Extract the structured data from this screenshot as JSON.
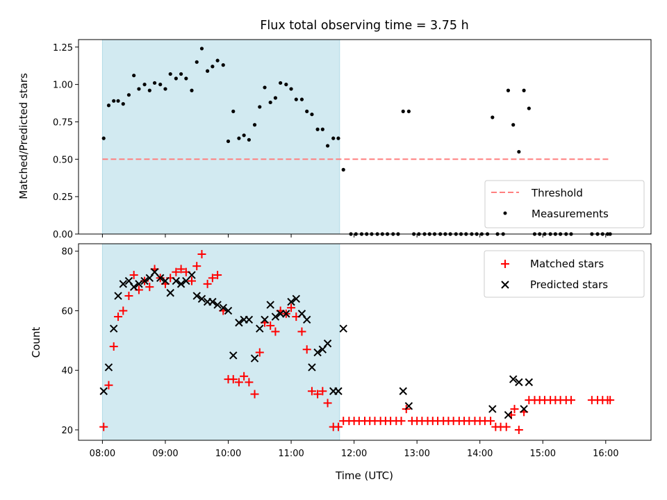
{
  "chart_data": {
    "title": "Flux total observing time = 3.75 h",
    "xlabel": "Time (UTC)",
    "x_ticks": [
      "08:00",
      "09:00",
      "10:00",
      "11:00",
      "12:00",
      "13:00",
      "14:00",
      "15:00",
      "16:00"
    ],
    "x_range_hours": [
      7.62,
      16.72
    ],
    "shaded_window_hours": [
      8.0,
      11.77
    ],
    "colors": {
      "shade": "#add8e6",
      "threshold": "#ff7f7f",
      "measurements": "#000000",
      "matched": "#ff0000",
      "predicted": "#000000"
    },
    "top": {
      "type": "scatter",
      "ylabel": "Matched/Predicted stars",
      "ylim": [
        0,
        1.3
      ],
      "y_ticks": [
        "0.00",
        "0.25",
        "0.50",
        "0.75",
        "1.00",
        "1.25"
      ],
      "threshold": {
        "name": "Threshold",
        "value": 0.5,
        "x_range": [
          8.0,
          16.07
        ]
      },
      "measurements_name": "Measurements",
      "measurements": [
        [
          8.02,
          0.64
        ],
        [
          8.1,
          0.86
        ],
        [
          8.18,
          0.89
        ],
        [
          8.25,
          0.89
        ],
        [
          8.33,
          0.87
        ],
        [
          8.42,
          0.93
        ],
        [
          8.5,
          1.06
        ],
        [
          8.58,
          0.97
        ],
        [
          8.67,
          1.0
        ],
        [
          8.75,
          0.96
        ],
        [
          8.83,
          1.01
        ],
        [
          8.92,
          1.0
        ],
        [
          9.0,
          0.97
        ],
        [
          9.08,
          1.07
        ],
        [
          9.17,
          1.04
        ],
        [
          9.25,
          1.07
        ],
        [
          9.33,
          1.04
        ],
        [
          9.42,
          0.96
        ],
        [
          9.5,
          1.15
        ],
        [
          9.58,
          1.24
        ],
        [
          9.67,
          1.09
        ],
        [
          9.75,
          1.12
        ],
        [
          9.83,
          1.16
        ],
        [
          9.92,
          1.13
        ],
        [
          10.0,
          0.62
        ],
        [
          10.08,
          0.82
        ],
        [
          10.17,
          0.64
        ],
        [
          10.25,
          0.66
        ],
        [
          10.33,
          0.63
        ],
        [
          10.42,
          0.73
        ],
        [
          10.5,
          0.85
        ],
        [
          10.58,
          0.98
        ],
        [
          10.67,
          0.88
        ],
        [
          10.75,
          0.91
        ],
        [
          10.83,
          1.01
        ],
        [
          10.92,
          1.0
        ],
        [
          11.0,
          0.97
        ],
        [
          11.08,
          0.9
        ],
        [
          11.17,
          0.9
        ],
        [
          11.25,
          0.82
        ],
        [
          11.33,
          0.8
        ],
        [
          11.42,
          0.7
        ],
        [
          11.5,
          0.7
        ],
        [
          11.58,
          0.59
        ],
        [
          11.67,
          0.64
        ],
        [
          11.75,
          0.64
        ],
        [
          11.83,
          0.43
        ],
        [
          11.95,
          0
        ],
        [
          12.03,
          0
        ],
        [
          12.12,
          0
        ],
        [
          12.2,
          0
        ],
        [
          12.28,
          0
        ],
        [
          12.37,
          0
        ],
        [
          12.45,
          0
        ],
        [
          12.53,
          0
        ],
        [
          12.62,
          0
        ],
        [
          12.7,
          0
        ],
        [
          12.78,
          0.82
        ],
        [
          12.87,
          0.82
        ],
        [
          12.95,
          0
        ],
        [
          13.03,
          0
        ],
        [
          13.12,
          0
        ],
        [
          13.2,
          0
        ],
        [
          13.28,
          0
        ],
        [
          13.37,
          0
        ],
        [
          13.45,
          0
        ],
        [
          13.53,
          0
        ],
        [
          13.62,
          0
        ],
        [
          13.7,
          0
        ],
        [
          13.78,
          0
        ],
        [
          13.87,
          0
        ],
        [
          13.95,
          0
        ],
        [
          14.03,
          0
        ],
        [
          14.12,
          0
        ],
        [
          14.2,
          0.78
        ],
        [
          14.28,
          0
        ],
        [
          14.37,
          0
        ],
        [
          14.45,
          0.96
        ],
        [
          14.53,
          0.73
        ],
        [
          14.62,
          0.55
        ],
        [
          14.7,
          0.96
        ],
        [
          14.78,
          0.84
        ],
        [
          14.87,
          0
        ],
        [
          14.95,
          0
        ],
        [
          15.03,
          0
        ],
        [
          15.12,
          0
        ],
        [
          15.2,
          0
        ],
        [
          15.28,
          0
        ],
        [
          15.37,
          0
        ],
        [
          15.45,
          0
        ],
        [
          15.78,
          0
        ],
        [
          15.87,
          0
        ],
        [
          15.95,
          0
        ],
        [
          16.03,
          0
        ],
        [
          16.07,
          0
        ]
      ]
    },
    "bottom": {
      "type": "scatter",
      "ylabel": "Count",
      "ylim": [
        16.5,
        82.5
      ],
      "y_ticks": [
        "20",
        "40",
        "60",
        "80"
      ],
      "matched_name": "Matched stars",
      "predicted_name": "Predicted stars",
      "matched": [
        [
          8.02,
          21
        ],
        [
          8.1,
          35
        ],
        [
          8.18,
          48
        ],
        [
          8.25,
          58
        ],
        [
          8.33,
          60
        ],
        [
          8.42,
          65
        ],
        [
          8.5,
          72
        ],
        [
          8.58,
          67
        ],
        [
          8.67,
          70
        ],
        [
          8.75,
          68
        ],
        [
          8.83,
          74
        ],
        [
          8.92,
          71
        ],
        [
          9.0,
          69
        ],
        [
          9.08,
          71
        ],
        [
          9.17,
          73
        ],
        [
          9.25,
          74
        ],
        [
          9.33,
          73
        ],
        [
          9.42,
          70
        ],
        [
          9.5,
          75
        ],
        [
          9.58,
          79
        ],
        [
          9.67,
          69
        ],
        [
          9.75,
          71
        ],
        [
          9.83,
          72
        ],
        [
          9.92,
          60
        ],
        [
          10.0,
          37
        ],
        [
          10.08,
          37
        ],
        [
          10.17,
          36
        ],
        [
          10.25,
          38
        ],
        [
          10.33,
          36
        ],
        [
          10.42,
          32
        ],
        [
          10.5,
          46
        ],
        [
          10.58,
          56
        ],
        [
          10.67,
          55
        ],
        [
          10.75,
          53
        ],
        [
          10.83,
          60
        ],
        [
          10.92,
          59
        ],
        [
          11.0,
          61
        ],
        [
          11.08,
          58
        ],
        [
          11.17,
          53
        ],
        [
          11.25,
          47
        ],
        [
          11.33,
          33
        ],
        [
          11.42,
          32
        ],
        [
          11.5,
          33
        ],
        [
          11.58,
          29
        ],
        [
          11.67,
          21
        ],
        [
          11.75,
          21
        ],
        [
          11.83,
          23
        ],
        [
          11.92,
          23
        ],
        [
          12.0,
          23
        ],
        [
          12.08,
          23
        ],
        [
          12.17,
          23
        ],
        [
          12.25,
          23
        ],
        [
          12.33,
          23
        ],
        [
          12.42,
          23
        ],
        [
          12.5,
          23
        ],
        [
          12.58,
          23
        ],
        [
          12.67,
          23
        ],
        [
          12.75,
          23
        ],
        [
          12.83,
          27
        ],
        [
          12.92,
          23
        ],
        [
          13.0,
          23
        ],
        [
          13.08,
          23
        ],
        [
          13.17,
          23
        ],
        [
          13.25,
          23
        ],
        [
          13.33,
          23
        ],
        [
          13.42,
          23
        ],
        [
          13.5,
          23
        ],
        [
          13.58,
          23
        ],
        [
          13.67,
          23
        ],
        [
          13.75,
          23
        ],
        [
          13.83,
          23
        ],
        [
          13.92,
          23
        ],
        [
          14.0,
          23
        ],
        [
          14.08,
          23
        ],
        [
          14.17,
          23
        ],
        [
          14.25,
          21
        ],
        [
          14.33,
          21
        ],
        [
          14.42,
          21
        ],
        [
          14.5,
          25
        ],
        [
          14.55,
          27
        ],
        [
          14.62,
          20
        ],
        [
          14.7,
          26
        ],
        [
          14.78,
          30
        ],
        [
          14.87,
          30
        ],
        [
          14.95,
          30
        ],
        [
          15.03,
          30
        ],
        [
          15.12,
          30
        ],
        [
          15.2,
          30
        ],
        [
          15.28,
          30
        ],
        [
          15.37,
          30
        ],
        [
          15.45,
          30
        ],
        [
          15.78,
          30
        ],
        [
          15.87,
          30
        ],
        [
          15.95,
          30
        ],
        [
          16.03,
          30
        ],
        [
          16.07,
          30
        ]
      ],
      "predicted": [
        [
          8.02,
          33
        ],
        [
          8.1,
          41
        ],
        [
          8.18,
          54
        ],
        [
          8.25,
          65
        ],
        [
          8.33,
          69
        ],
        [
          8.42,
          70
        ],
        [
          8.5,
          68
        ],
        [
          8.58,
          69
        ],
        [
          8.67,
          70
        ],
        [
          8.75,
          71
        ],
        [
          8.83,
          73
        ],
        [
          8.92,
          71
        ],
        [
          9.0,
          70
        ],
        [
          9.08,
          66
        ],
        [
          9.17,
          70
        ],
        [
          9.25,
          69
        ],
        [
          9.33,
          70
        ],
        [
          9.42,
          72
        ],
        [
          9.5,
          65
        ],
        [
          9.58,
          64
        ],
        [
          9.67,
          63
        ],
        [
          9.75,
          63
        ],
        [
          9.83,
          62
        ],
        [
          9.92,
          61
        ],
        [
          10.0,
          60
        ],
        [
          10.08,
          45
        ],
        [
          10.17,
          56
        ],
        [
          10.25,
          57
        ],
        [
          10.33,
          57
        ],
        [
          10.42,
          44
        ],
        [
          10.5,
          54
        ],
        [
          10.58,
          57
        ],
        [
          10.67,
          62
        ],
        [
          10.75,
          58
        ],
        [
          10.83,
          59
        ],
        [
          10.92,
          59
        ],
        [
          11.0,
          63
        ],
        [
          11.08,
          64
        ],
        [
          11.17,
          59
        ],
        [
          11.25,
          57
        ],
        [
          11.33,
          41
        ],
        [
          11.42,
          46
        ],
        [
          11.5,
          47
        ],
        [
          11.58,
          49
        ],
        [
          11.67,
          33
        ],
        [
          11.75,
          33
        ],
        [
          11.83,
          54
        ],
        [
          12.78,
          33
        ],
        [
          12.87,
          28
        ],
        [
          14.2,
          27
        ],
        [
          14.45,
          25
        ],
        [
          14.53,
          37
        ],
        [
          14.62,
          36
        ],
        [
          14.7,
          27
        ],
        [
          14.78,
          36
        ]
      ]
    }
  }
}
